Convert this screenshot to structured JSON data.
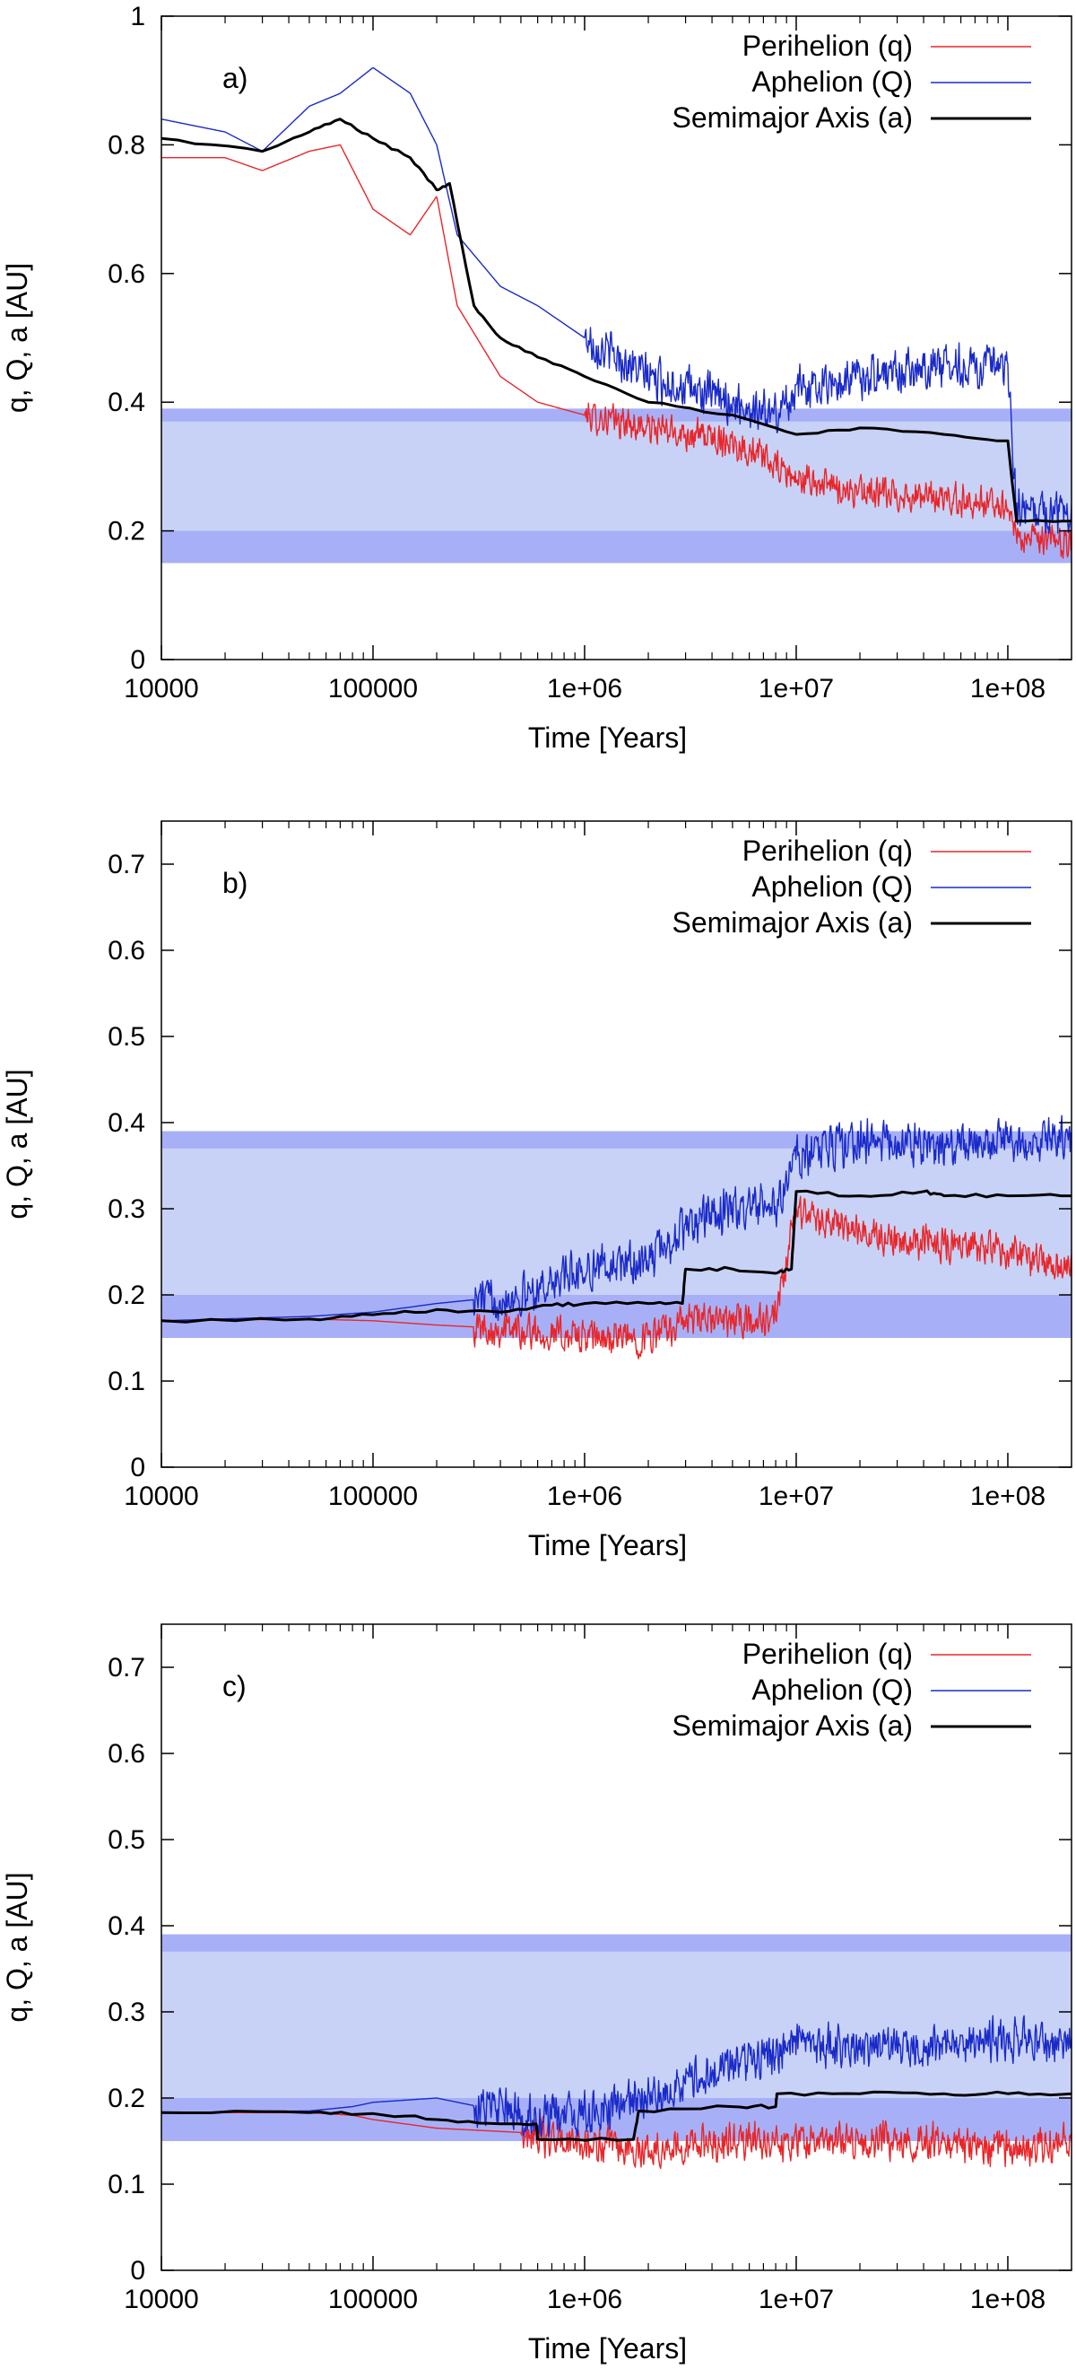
{
  "chart_data": [
    {
      "type": "line",
      "panel_label": "a)",
      "xlabel": "Time [Years]",
      "ylabel": "q, Q, a [AU]",
      "xscale": "log",
      "xlim": [
        10000,
        200000000
      ],
      "ylim": [
        0,
        1
      ],
      "x_ticks": [
        10000,
        100000,
        1000000,
        10000000,
        100000000
      ],
      "x_tick_labels": [
        "10000",
        "100000",
        "1e+06",
        "1e+07",
        "1e+08"
      ],
      "y_ticks": [
        0,
        0.2,
        0.4,
        0.6,
        0.8,
        1
      ],
      "y_tick_labels": [
        "0",
        "0.2",
        "0.4",
        "0.6",
        "0.8",
        "1"
      ],
      "shaded_bands": [
        {
          "y_from": 0.15,
          "y_to": 0.39,
          "shade": "light"
        },
        {
          "y_from": 0.15,
          "y_to": 0.2,
          "shade": "dark"
        },
        {
          "y_from": 0.37,
          "y_to": 0.39,
          "shade": "dark"
        }
      ],
      "legend_position": "top-right",
      "series": [
        {
          "name": "Perihelion (q)",
          "color": "#e8262a",
          "noise": 0.03,
          "noise_start": 1000000,
          "x": [
            10000,
            20000,
            30000,
            50000,
            70000,
            100000,
            150000,
            200000,
            250000,
            400000,
            600000,
            1000000,
            2000000,
            5000000,
            8000000,
            10000000,
            20000000,
            50000000,
            100000000,
            110000000,
            200000000
          ],
          "y": [
            0.78,
            0.78,
            0.76,
            0.79,
            0.8,
            0.7,
            0.66,
            0.72,
            0.55,
            0.44,
            0.4,
            0.38,
            0.36,
            0.34,
            0.3,
            0.28,
            0.26,
            0.25,
            0.24,
            0.19,
            0.18
          ]
        },
        {
          "name": "Aphelion (Q)",
          "color": "#1a2ac8",
          "noise": 0.04,
          "noise_start": 1000000,
          "x": [
            10000,
            20000,
            30000,
            50000,
            70000,
            100000,
            150000,
            200000,
            250000,
            400000,
            600000,
            1000000,
            2000000,
            5000000,
            8000000,
            10000000,
            20000000,
            50000000,
            100000000,
            110000000,
            200000000
          ],
          "y": [
            0.84,
            0.82,
            0.79,
            0.86,
            0.88,
            0.92,
            0.88,
            0.8,
            0.66,
            0.58,
            0.55,
            0.5,
            0.44,
            0.4,
            0.38,
            0.42,
            0.44,
            0.46,
            0.45,
            0.23,
            0.23
          ]
        },
        {
          "name": "Semimajor Axis (a)",
          "color": "#000000",
          "noise": 0,
          "x": [
            10000,
            30000,
            50000,
            70000,
            100000,
            150000,
            200000,
            230000,
            300000,
            400000,
            600000,
            1000000,
            2000000,
            5000000,
            10000000,
            20000000,
            50000000,
            100000000,
            110000000,
            200000000
          ],
          "y": [
            0.81,
            0.79,
            0.82,
            0.84,
            0.81,
            0.78,
            0.73,
            0.74,
            0.55,
            0.5,
            0.47,
            0.44,
            0.4,
            0.38,
            0.35,
            0.36,
            0.35,
            0.34,
            0.215,
            0.215
          ]
        }
      ]
    },
    {
      "type": "line",
      "panel_label": "b)",
      "xlabel": "Time [Years]",
      "ylabel": "q, Q, a [AU]",
      "xscale": "log",
      "xlim": [
        10000,
        200000000
      ],
      "ylim": [
        0,
        0.75
      ],
      "x_ticks": [
        10000,
        100000,
        1000000,
        10000000,
        100000000
      ],
      "x_tick_labels": [
        "10000",
        "100000",
        "1e+06",
        "1e+07",
        "1e+08"
      ],
      "y_ticks": [
        0,
        0.1,
        0.2,
        0.3,
        0.4,
        0.5,
        0.6,
        0.7
      ],
      "y_tick_labels": [
        "0",
        "0.1",
        "0.2",
        "0.3",
        "0.4",
        "0.5",
        "0.6",
        "0.7"
      ],
      "shaded_bands": [
        {
          "y_from": 0.15,
          "y_to": 0.39,
          "shade": "light"
        },
        {
          "y_from": 0.15,
          "y_to": 0.2,
          "shade": "dark"
        },
        {
          "y_from": 0.37,
          "y_to": 0.39,
          "shade": "dark"
        }
      ],
      "legend_position": "top-right",
      "series": [
        {
          "name": "Perihelion (q)",
          "color": "#e8262a",
          "noise": 0.025,
          "noise_start": 300000,
          "x": [
            10000,
            50000,
            100000,
            200000,
            500000,
            1000000,
            2000000,
            3000000,
            5000000,
            8000000,
            10000000,
            20000000,
            50000000,
            100000000,
            200000000
          ],
          "y": [
            0.17,
            0.172,
            0.17,
            0.165,
            0.16,
            0.15,
            0.15,
            0.17,
            0.17,
            0.17,
            0.3,
            0.27,
            0.26,
            0.25,
            0.23
          ]
        },
        {
          "name": "Aphelion (Q)",
          "color": "#1a2ac8",
          "noise": 0.03,
          "noise_start": 300000,
          "x": [
            10000,
            50000,
            100000,
            200000,
            500000,
            1000000,
            2000000,
            3000000,
            5000000,
            8000000,
            10000000,
            20000000,
            50000000,
            100000000,
            200000000
          ],
          "y": [
            0.17,
            0.175,
            0.18,
            0.19,
            0.2,
            0.23,
            0.24,
            0.28,
            0.3,
            0.3,
            0.36,
            0.38,
            0.37,
            0.38,
            0.38
          ]
        },
        {
          "name": "Semimajor Axis (a)",
          "color": "#000000",
          "noise": 0,
          "x": [
            10000,
            50000,
            100000,
            200000,
            400000,
            700000,
            1000000,
            2000000,
            2900000,
            3000000,
            5000000,
            8000000,
            9500000,
            10000000,
            20000000,
            40000000,
            50000000,
            100000000,
            200000000
          ],
          "y": [
            0.17,
            0.172,
            0.177,
            0.183,
            0.18,
            0.188,
            0.19,
            0.19,
            0.19,
            0.23,
            0.23,
            0.225,
            0.23,
            0.32,
            0.315,
            0.32,
            0.315,
            0.315,
            0.315
          ]
        }
      ]
    },
    {
      "type": "line",
      "panel_label": "c)",
      "xlabel": "Time [Years]",
      "ylabel": "q, Q, a [AU]",
      "xscale": "log",
      "xlim": [
        10000,
        200000000
      ],
      "ylim": [
        0,
        0.75
      ],
      "x_ticks": [
        10000,
        100000,
        1000000,
        10000000,
        100000000
      ],
      "x_tick_labels": [
        "10000",
        "100000",
        "1e+06",
        "1e+07",
        "1e+08"
      ],
      "y_ticks": [
        0,
        0.1,
        0.2,
        0.3,
        0.4,
        0.5,
        0.6,
        0.7
      ],
      "y_tick_labels": [
        "0",
        "0.1",
        "0.2",
        "0.3",
        "0.4",
        "0.5",
        "0.6",
        "0.7"
      ],
      "shaded_bands": [
        {
          "y_from": 0.15,
          "y_to": 0.39,
          "shade": "light"
        },
        {
          "y_from": 0.15,
          "y_to": 0.2,
          "shade": "dark"
        },
        {
          "y_from": 0.37,
          "y_to": 0.39,
          "shade": "dark"
        }
      ],
      "legend_position": "top-right",
      "series": [
        {
          "name": "Perihelion (q)",
          "color": "#e8262a",
          "noise": 0.025,
          "noise_start": 500000,
          "x": [
            10000,
            50000,
            80000,
            100000,
            200000,
            500000,
            1000000,
            2000000,
            5000000,
            10000000,
            20000000,
            50000000,
            100000000,
            200000000
          ],
          "y": [
            0.183,
            0.183,
            0.18,
            0.175,
            0.165,
            0.16,
            0.145,
            0.14,
            0.15,
            0.15,
            0.15,
            0.15,
            0.14,
            0.15
          ]
        },
        {
          "name": "Aphelion (Q)",
          "color": "#1a2ac8",
          "noise": 0.03,
          "noise_start": 300000,
          "x": [
            10000,
            50000,
            80000,
            100000,
            200000,
            500000,
            1000000,
            2000000,
            5000000,
            10000000,
            20000000,
            50000000,
            100000000,
            200000000
          ],
          "y": [
            0.183,
            0.185,
            0.19,
            0.195,
            0.2,
            0.18,
            0.18,
            0.2,
            0.24,
            0.26,
            0.26,
            0.26,
            0.27,
            0.26
          ]
        },
        {
          "name": "Semimajor Axis (a)",
          "color": "#000000",
          "noise": 0,
          "x": [
            10000,
            50000,
            100000,
            200000,
            400000,
            590000,
            600000,
            1700000,
            1800000,
            5000000,
            8000000,
            8100000,
            20000000,
            50000000,
            100000000,
            200000000
          ],
          "y": [
            0.183,
            0.183,
            0.182,
            0.175,
            0.17,
            0.17,
            0.152,
            0.152,
            0.185,
            0.19,
            0.19,
            0.205,
            0.205,
            0.205,
            0.205,
            0.205
          ]
        }
      ]
    }
  ]
}
